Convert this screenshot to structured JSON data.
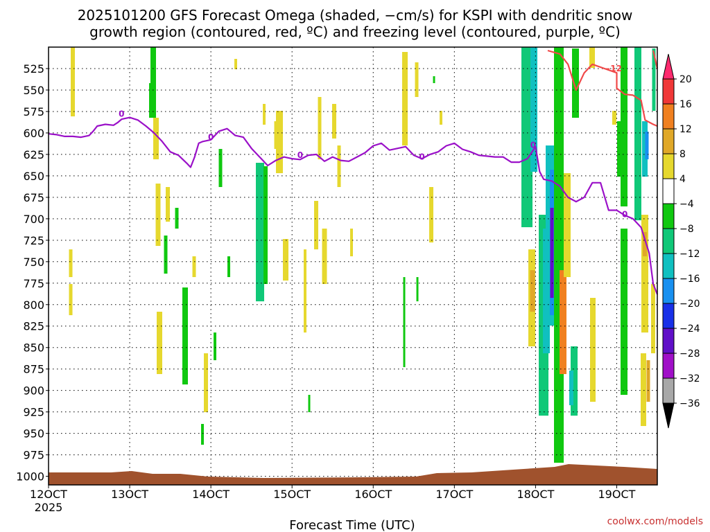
{
  "chart_data": {
    "type": "heatmap",
    "title_line1": "2025101200 GFS Forecast Omega (shaded, −cm/s) for KSPI with dendritic snow",
    "title_line2": "growth region (contoured, red, ºC) and freezing level (contoured, purple, ºC)",
    "xlabel": "Forecast Time (UTC)",
    "credit": "coolwx.com/models",
    "x_start_label_year": "2025",
    "x_ticks": [
      {
        "day": 12,
        "label": "12OCT"
      },
      {
        "day": 13,
        "label": "13OCT"
      },
      {
        "day": 14,
        "label": "14OCT"
      },
      {
        "day": 15,
        "label": "15OCT"
      },
      {
        "day": 16,
        "label": "16OCT"
      },
      {
        "day": 17,
        "label": "17OCT"
      },
      {
        "day": 18,
        "label": "18OCT"
      },
      {
        "day": 19,
        "label": "19OCT"
      }
    ],
    "xlim": [
      12.0,
      19.5
    ],
    "ylim": [
      1010,
      500
    ],
    "y_ticks": [
      525,
      550,
      575,
      600,
      625,
      650,
      675,
      700,
      725,
      750,
      775,
      800,
      825,
      850,
      875,
      900,
      925,
      950,
      975,
      1000
    ],
    "grid": true,
    "colorbar": {
      "ticks": [
        "20",
        "16",
        "12",
        "8",
        "4",
        "−4",
        "−8",
        "−12",
        "−16",
        "−20",
        "−24",
        "−28",
        "−32",
        "−36"
      ],
      "colors": [
        "#ff2a6e",
        "#f03838",
        "#f08020",
        "#e0a828",
        "#e6d82e",
        "#ffffff",
        "#10c810",
        "#10c878",
        "#10c0c0",
        "#1890f0",
        "#1830e8",
        "#6010c8",
        "#a010c8",
        "#a8a8a8",
        "#000000"
      ]
    },
    "freezing_level": {
      "color": "#9a10c8",
      "label": "0",
      "points": [
        [
          12.0,
          601
        ],
        [
          12.1,
          602
        ],
        [
          12.2,
          604
        ],
        [
          12.3,
          604
        ],
        [
          12.4,
          605
        ],
        [
          12.5,
          603
        ],
        [
          12.55,
          598
        ],
        [
          12.6,
          592
        ],
        [
          12.7,
          590
        ],
        [
          12.8,
          591
        ],
        [
          12.85,
          588
        ],
        [
          12.9,
          584
        ],
        [
          13.0,
          582
        ],
        [
          13.1,
          585
        ],
        [
          13.2,
          592
        ],
        [
          13.3,
          600
        ],
        [
          13.4,
          610
        ],
        [
          13.5,
          622
        ],
        [
          13.6,
          626
        ],
        [
          13.7,
          635
        ],
        [
          13.75,
          640
        ],
        [
          13.8,
          628
        ],
        [
          13.85,
          612
        ],
        [
          13.9,
          610
        ],
        [
          14.0,
          608
        ],
        [
          14.1,
          598
        ],
        [
          14.2,
          595
        ],
        [
          14.3,
          603
        ],
        [
          14.4,
          605
        ],
        [
          14.5,
          618
        ],
        [
          14.6,
          628
        ],
        [
          14.7,
          638
        ],
        [
          14.8,
          632
        ],
        [
          14.9,
          628
        ],
        [
          15.0,
          630
        ],
        [
          15.1,
          631
        ],
        [
          15.2,
          626
        ],
        [
          15.3,
          625
        ],
        [
          15.4,
          633
        ],
        [
          15.5,
          628
        ],
        [
          15.6,
          632
        ],
        [
          15.7,
          633
        ],
        [
          15.8,
          628
        ],
        [
          15.9,
          623
        ],
        [
          16.0,
          615
        ],
        [
          16.1,
          612
        ],
        [
          16.2,
          620
        ],
        [
          16.3,
          618
        ],
        [
          16.4,
          616
        ],
        [
          16.5,
          626
        ],
        [
          16.6,
          630
        ],
        [
          16.7,
          625
        ],
        [
          16.8,
          622
        ],
        [
          16.9,
          615
        ],
        [
          17.0,
          612
        ],
        [
          17.1,
          619
        ],
        [
          17.2,
          622
        ],
        [
          17.3,
          626
        ],
        [
          17.4,
          627
        ],
        [
          17.5,
          628
        ],
        [
          17.6,
          628
        ],
        [
          17.7,
          634
        ],
        [
          17.8,
          634
        ],
        [
          17.9,
          630
        ],
        [
          18.0,
          616
        ],
        [
          18.05,
          645
        ],
        [
          18.1,
          654
        ],
        [
          18.2,
          656
        ],
        [
          18.3,
          662
        ],
        [
          18.4,
          675
        ],
        [
          18.5,
          680
        ],
        [
          18.6,
          675
        ],
        [
          18.7,
          658
        ],
        [
          18.8,
          658
        ],
        [
          18.9,
          690
        ],
        [
          19.0,
          690
        ],
        [
          19.1,
          696
        ],
        [
          19.2,
          700
        ],
        [
          19.3,
          710
        ],
        [
          19.4,
          740
        ],
        [
          19.45,
          776
        ],
        [
          19.5,
          788
        ]
      ]
    },
    "dgz_contour": {
      "color": "#f04848",
      "label": "−12",
      "segments": [
        [
          [
            18.15,
            504
          ],
          [
            18.3,
            508
          ],
          [
            18.4,
            520
          ],
          [
            18.5,
            550
          ],
          [
            18.6,
            530
          ],
          [
            18.7,
            520
          ],
          [
            18.85,
            525
          ],
          [
            19.0,
            530
          ],
          [
            19.0,
            548
          ],
          [
            19.1,
            555
          ],
          [
            19.2,
            556
          ],
          [
            19.3,
            562
          ],
          [
            19.35,
            585
          ],
          [
            19.45,
            590
          ],
          [
            19.5,
            592
          ]
        ],
        [
          [
            19.45,
            504
          ],
          [
            19.5,
            525
          ]
        ]
      ]
    }
  }
}
